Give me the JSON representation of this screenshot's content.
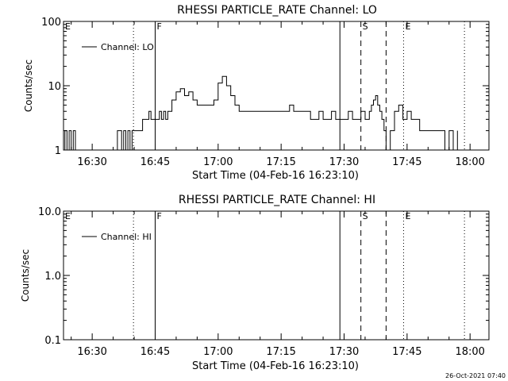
{
  "chart_data": [
    {
      "type": "line",
      "title": "RHESSI PARTICLE_RATE Channel: LO",
      "xlabel": "Start Time (04-Feb-16 16:23:10)",
      "ylabel": "Counts/sec",
      "yscale": "log",
      "ylim": [
        1,
        100
      ],
      "xlim": [
        "16:23:10",
        "18:04:30"
      ],
      "x_ticks": [
        "16:30",
        "16:45",
        "17:00",
        "17:15",
        "17:30",
        "17:45",
        "18:00"
      ],
      "y_ticks": [
        "1",
        "10",
        "100"
      ],
      "legend": {
        "label": "Channel: LO",
        "position": "top-left"
      },
      "markers": [
        {
          "label": "E",
          "time": "16:23:10",
          "style": "none"
        },
        {
          "label": "",
          "time": "16:39:50",
          "style": "dotted"
        },
        {
          "label": "F",
          "time": "16:45:00",
          "style": "solid"
        },
        {
          "label": "",
          "time": "17:29:00",
          "style": "solid"
        },
        {
          "label": "S",
          "time": "17:34:00",
          "style": "dashed"
        },
        {
          "label": "",
          "time": "17:40:00",
          "style": "dashed"
        },
        {
          "label": "E",
          "time": "17:44:10",
          "style": "dotted"
        },
        {
          "label": "",
          "time": "17:58:40",
          "style": "dotted"
        }
      ],
      "series": [
        {
          "name": "Channel: LO",
          "x": [
            "16:23:10",
            "16:23:30",
            "16:24:00",
            "16:24:30",
            "16:25:00",
            "16:25:30",
            "16:26:00",
            "16:27:00",
            "16:28:00",
            "16:29:00",
            "16:30:00",
            "16:31:00",
            "16:32:00",
            "16:33:00",
            "16:34:00",
            "16:35:00",
            "16:36:00",
            "16:37:00",
            "16:37:30",
            "16:38:00",
            "16:38:30",
            "16:39:00",
            "16:39:30",
            "16:40:00",
            "16:41:00",
            "16:42:00",
            "16:42:30",
            "16:43:00",
            "16:43:30",
            "16:44:00",
            "16:44:30",
            "16:45:00",
            "16:45:30",
            "16:46:00",
            "16:46:30",
            "16:47:00",
            "16:47:30",
            "16:48:00",
            "16:49:00",
            "16:50:00",
            "16:51:00",
            "16:52:00",
            "16:53:00",
            "16:54:00",
            "16:55:00",
            "16:56:00",
            "16:57:00",
            "16:58:00",
            "16:59:00",
            "17:00:00",
            "17:01:00",
            "17:02:00",
            "17:03:00",
            "17:04:00",
            "17:05:00",
            "17:06:00",
            "17:07:00",
            "17:08:00",
            "17:09:00",
            "17:10:00",
            "17:11:00",
            "17:12:00",
            "17:13:00",
            "17:14:00",
            "17:15:00",
            "17:16:00",
            "17:17:00",
            "17:18:00",
            "17:19:00",
            "17:20:00",
            "17:21:00",
            "17:22:00",
            "17:23:00",
            "17:24:00",
            "17:25:00",
            "17:26:00",
            "17:27:00",
            "17:28:00",
            "17:29:00",
            "17:30:00",
            "17:31:00",
            "17:32:00",
            "17:33:00",
            "17:34:00",
            "17:35:00",
            "17:36:00",
            "17:36:30",
            "17:37:00",
            "17:37:30",
            "17:38:00",
            "17:38:30",
            "17:39:00",
            "17:39:30",
            "17:40:00",
            "17:40:30",
            "17:41:00",
            "17:42:00",
            "17:43:00",
            "17:44:00",
            "17:45:00",
            "17:46:00",
            "17:47:00",
            "17:48:00",
            "17:49:00",
            "17:50:00",
            "17:51:00",
            "17:52:00",
            "17:53:00",
            "17:54:00",
            "17:55:00",
            "17:56:00",
            "17:57:00"
          ],
          "y": [
            1,
            2,
            1,
            2,
            1,
            2,
            1,
            1,
            1,
            1,
            1,
            1,
            1,
            1,
            1,
            1,
            2,
            1,
            2,
            1,
            2,
            1,
            2,
            2,
            2,
            3,
            3,
            3,
            4,
            3,
            3,
            3,
            3,
            4,
            3,
            4,
            3,
            4,
            6,
            8,
            9,
            7,
            8,
            6,
            5,
            5,
            5,
            5,
            6,
            11,
            14,
            10,
            7,
            5,
            4,
            4,
            4,
            4,
            4,
            4,
            4,
            4,
            4,
            4,
            4,
            4,
            5,
            4,
            4,
            4,
            4,
            3,
            3,
            4,
            3,
            3,
            4,
            3,
            3,
            3,
            4,
            3,
            3,
            4,
            3,
            4,
            5,
            6,
            7,
            5,
            4,
            3,
            2,
            1,
            1,
            2,
            4,
            5,
            3,
            4,
            3,
            3,
            2,
            2,
            2,
            2,
            2,
            2,
            1,
            2,
            1,
            2
          ]
        }
      ]
    },
    {
      "type": "line",
      "title": "RHESSI PARTICLE_RATE Channel: HI",
      "xlabel": "Start Time (04-Feb-16 16:23:10)",
      "ylabel": "Counts/sec",
      "yscale": "log",
      "ylim": [
        0.1,
        10
      ],
      "xlim": [
        "16:23:10",
        "18:04:30"
      ],
      "x_ticks": [
        "16:30",
        "16:45",
        "17:00",
        "17:15",
        "17:30",
        "17:45",
        "18:00"
      ],
      "y_ticks": [
        "0.1",
        "1.0",
        "10.0"
      ],
      "legend": {
        "label": "Channel: HI",
        "position": "top-left"
      },
      "markers": [
        {
          "label": "E",
          "time": "16:23:10",
          "style": "none"
        },
        {
          "label": "",
          "time": "16:39:50",
          "style": "dotted"
        },
        {
          "label": "F",
          "time": "16:45:00",
          "style": "solid"
        },
        {
          "label": "",
          "time": "17:29:00",
          "style": "solid"
        },
        {
          "label": "S",
          "time": "17:34:00",
          "style": "dashed"
        },
        {
          "label": "",
          "time": "17:40:00",
          "style": "dashed"
        },
        {
          "label": "E",
          "time": "17:44:10",
          "style": "dotted"
        },
        {
          "label": "",
          "time": "17:58:40",
          "style": "dotted"
        }
      ],
      "series": [
        {
          "name": "Channel: HI",
          "x": [],
          "y": []
        }
      ]
    }
  ],
  "footer": {
    "timestamp": "26-Oct-2021 07:40"
  }
}
